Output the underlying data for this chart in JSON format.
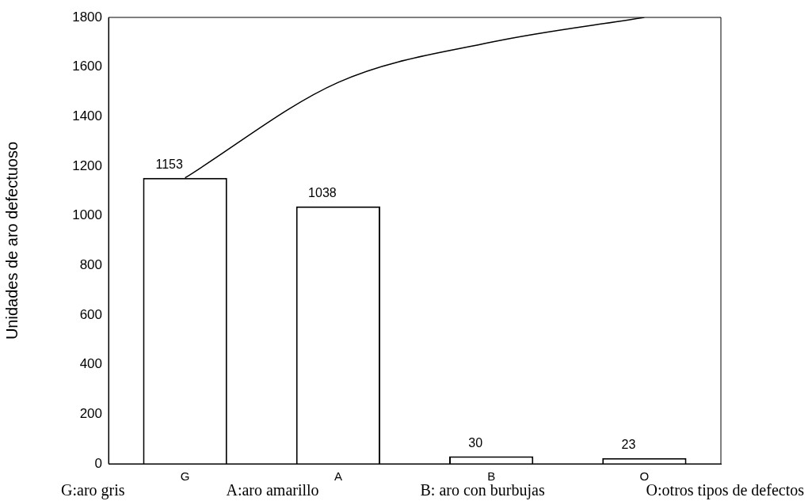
{
  "chart_data": {
    "type": "bar",
    "ylabel": "Unidades de aro defectuoso",
    "categories": [
      "G",
      "A",
      "B",
      "O"
    ],
    "values": [
      1153,
      1038,
      30,
      23
    ],
    "color": "#ffffff",
    "series": [
      {
        "type": "line",
        "color": "#000000",
        "values": [
          1153,
          1538,
          1700,
          1800
        ]
      }
    ],
    "ylim": [
      0,
      1800
    ],
    "yticks": [
      0,
      200,
      400,
      600,
      800,
      1000,
      1200,
      1400,
      1600,
      1800
    ],
    "value_labels": [
      "1153",
      "1038",
      "30",
      "23"
    ],
    "grid": false,
    "legend": false,
    "marker": "none",
    "annotations": [
      "G:aro gris",
      "A:aro amarillo",
      "B: aro con burbujas",
      "O:otros tipos de defectos"
    ]
  }
}
